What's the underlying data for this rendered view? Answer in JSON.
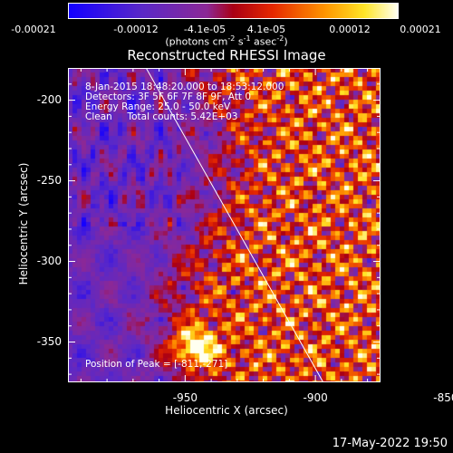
{
  "chart_data": {
    "type": "heatmap",
    "title": "Reconstructed RHESSI Image",
    "xlabel": "Heliocentric X (arcsec)",
    "ylabel": "Heliocentric Y (arcsec)",
    "xlim": [
      -995,
      -875
    ],
    "ylim": [
      -375,
      -180
    ],
    "xticks": [
      -950,
      -900,
      -850
    ],
    "yticks": [
      -200,
      -250,
      -300,
      -350
    ],
    "colorbar": {
      "ticks": [
        "-0.00021",
        "-0.00012",
        "-4.1e-05",
        "4.1e-05",
        "0.00012",
        "0.00021"
      ],
      "unit_prefix": "(photons cm",
      "unit_exp1": "-2",
      "unit_mid1": " s",
      "unit_exp2": "-1",
      "unit_mid2": " asec",
      "unit_exp3": "-2",
      "unit_suffix": ")",
      "range": [
        -0.00021,
        0.00021
      ]
    },
    "info": {
      "time": "8-Jan-2015 18:48:20.000 to 18:53:12.000",
      "detectors": "Detectors: 3F 5F 6F 7F 8F 9F, Att 0",
      "energy": "Energy Range: 25.0 - 50.0 keV",
      "method": "Clean     Total counts: 5.42E+03",
      "peak": "Position of Peak = [-811,-271]"
    },
    "limb_line": {
      "x": [
        -965,
        -897
      ],
      "y": [
        -180,
        -375
      ]
    }
  },
  "footer": {
    "timestamp": "17-May-2022 19:50"
  }
}
